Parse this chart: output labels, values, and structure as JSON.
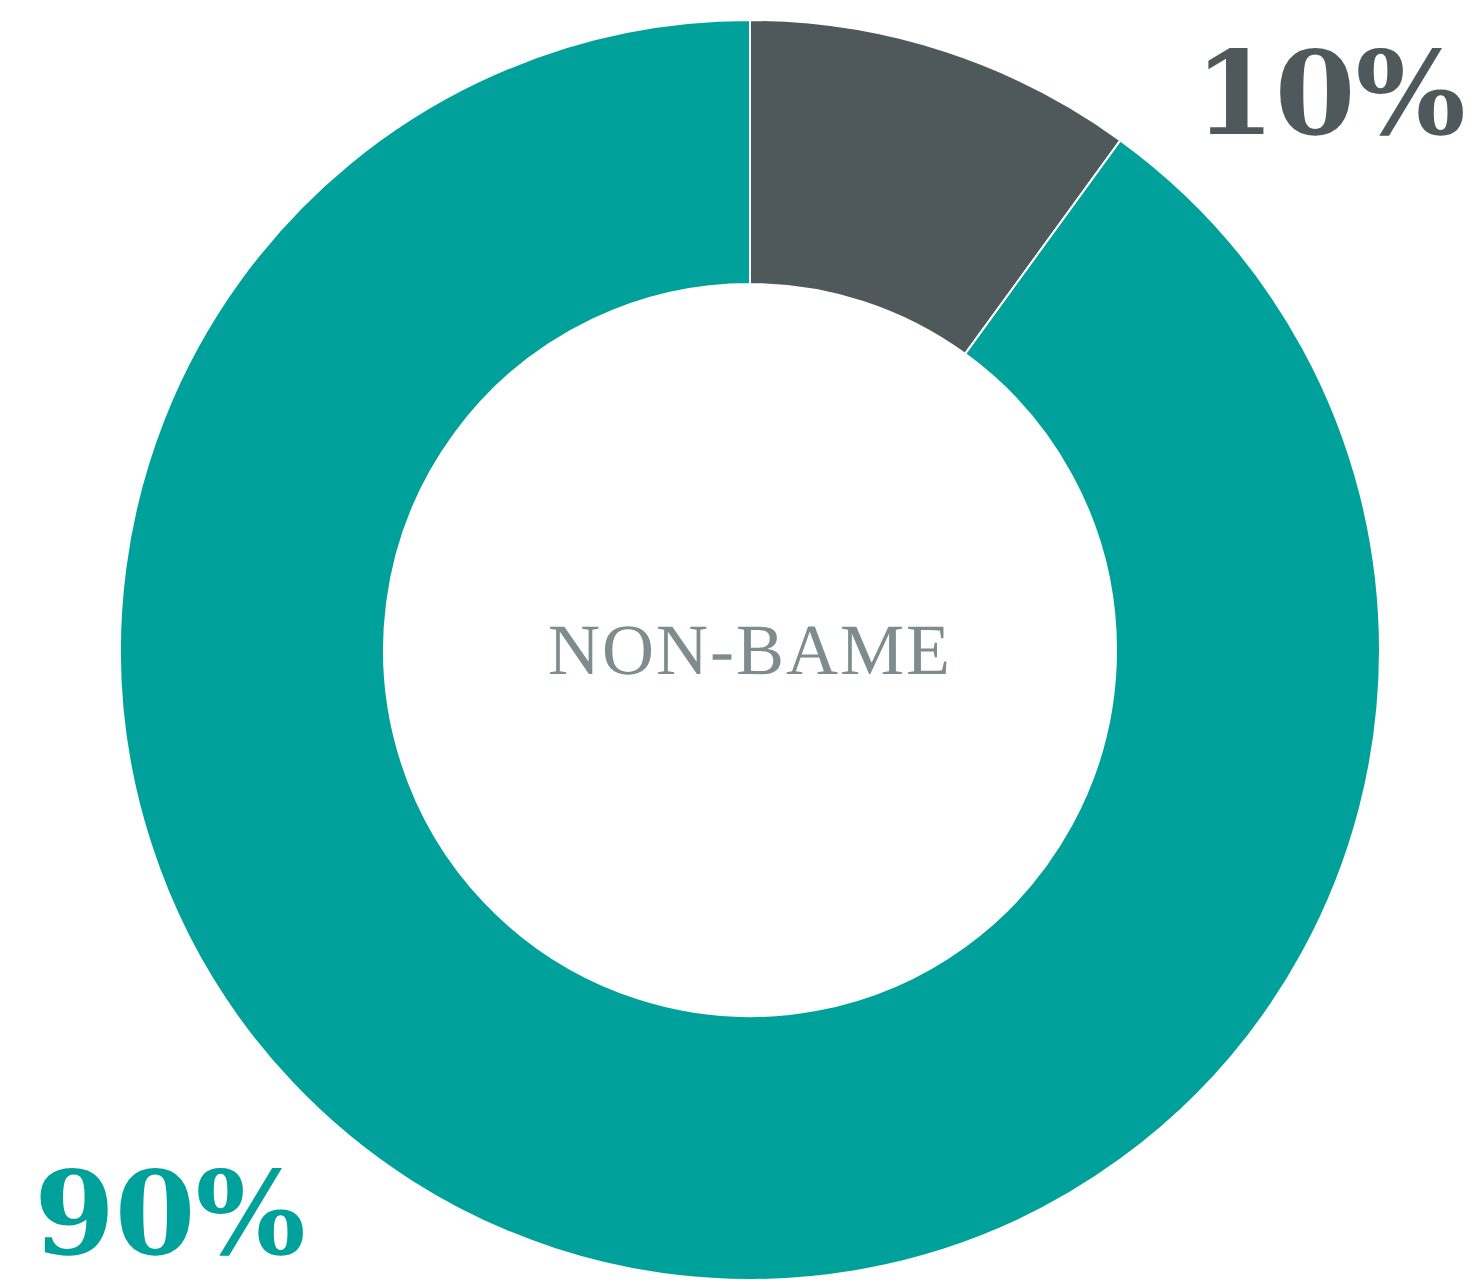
{
  "chart_data": {
    "type": "donut",
    "title": "NON-BAME",
    "categories": [
      null,
      null
    ],
    "values": [
      10,
      90
    ],
    "colors": [
      "#4f595c",
      "#00a19b"
    ],
    "value_labels": [
      "10%",
      "90%"
    ]
  }
}
